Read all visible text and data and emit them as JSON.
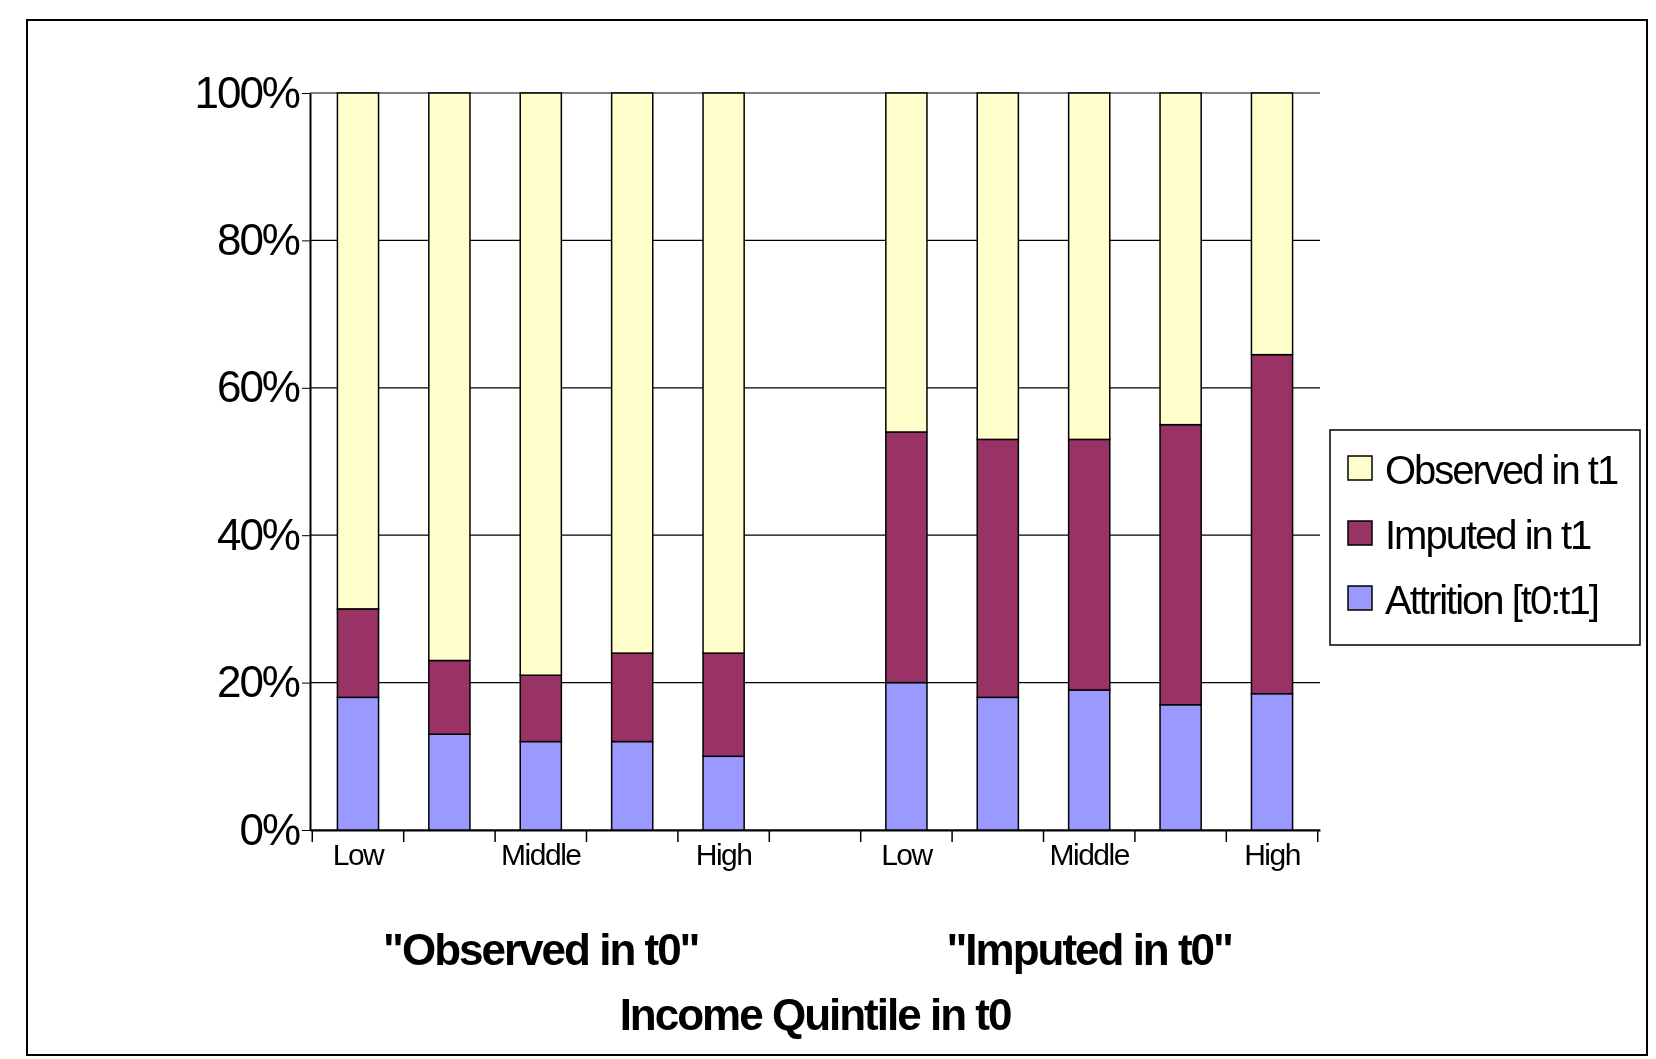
{
  "chart_data": {
    "type": "bar",
    "stacked": true,
    "categories": [
      "Low",
      null,
      "Middle",
      null,
      "High",
      null,
      "Low",
      null,
      "Middle",
      null,
      "High"
    ],
    "series": [
      {
        "name": "Attrition [t0:t1]",
        "color": "#9999ff",
        "values": [
          18,
          13,
          12,
          12,
          10,
          null,
          20,
          18,
          19,
          17,
          18.5
        ]
      },
      {
        "name": "Imputed in t1",
        "color": "#993366",
        "values": [
          12,
          10,
          9,
          12,
          14,
          null,
          34,
          35,
          34,
          38,
          46
        ]
      },
      {
        "name": "Observed in t1",
        "color": "#ffffcc",
        "values": [
          70,
          77,
          79,
          76,
          76,
          null,
          46,
          47,
          47,
          45,
          35.5
        ]
      }
    ],
    "xlabel": "Income Quintile in t0",
    "annotations": [
      "\"Observed in t0\"",
      "\"Imputed in t0\""
    ],
    "ylim": [
      0,
      100
    ],
    "yticks": [
      {
        "value": 0,
        "label": "0%"
      },
      {
        "value": 20,
        "label": "20%"
      },
      {
        "value": 40,
        "label": "40%"
      },
      {
        "value": 60,
        "label": "60%"
      },
      {
        "value": 80,
        "label": "80%"
      },
      {
        "value": 100,
        "label": "100%"
      }
    ],
    "grid": "y",
    "legend": "right"
  }
}
